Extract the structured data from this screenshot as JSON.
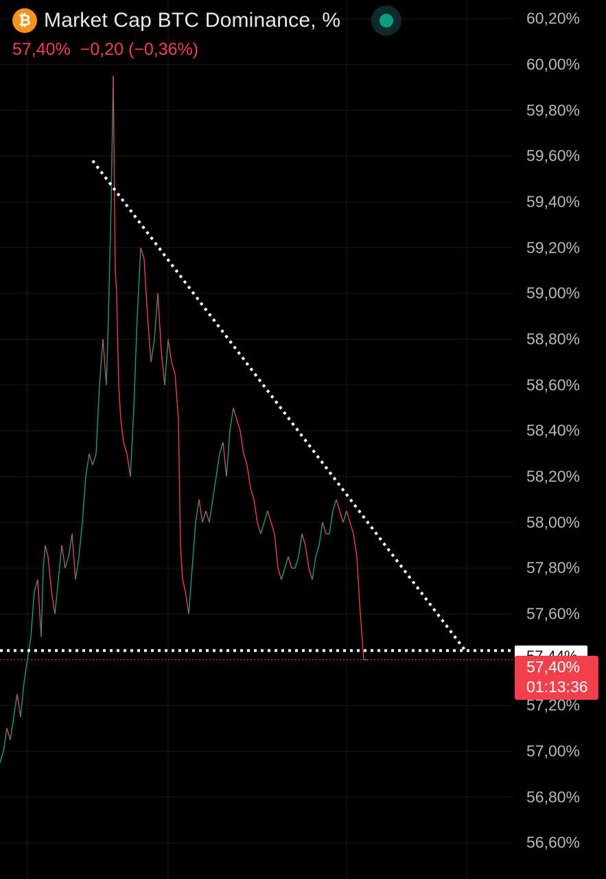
{
  "header": {
    "coin_icon": "bitcoin-icon",
    "coin_glyph": "₿",
    "title": "Market Cap BTC Dominance, %",
    "price": "57,40%",
    "change": "−0,20 (−0,36%)",
    "live_indicator": "status-dot-icon"
  },
  "price_tags": {
    "line_value": "57,44%",
    "last_price": "57,40%",
    "countdown": "01:13:36"
  },
  "colors": {
    "background": "#000000",
    "up": "#1a9e80",
    "down": "#f2404c",
    "grid": "#1a1a1a",
    "axis_text": "#b8b8b8",
    "trendline": "#ffffff",
    "brand": "#f7931a"
  },
  "chart_data": {
    "type": "line",
    "title": "Market Cap BTC Dominance, %",
    "y_ticks": [
      "60,20%",
      "60,00%",
      "59,80%",
      "59,60%",
      "59,40%",
      "59,20%",
      "59,00%",
      "58,80%",
      "58,60%",
      "58,40%",
      "58,20%",
      "58,00%",
      "57,80%",
      "57,60%",
      "57,20%",
      "57,00%",
      "56,80%",
      "56,60%"
    ],
    "ylim": [
      56.55,
      60.24
    ],
    "x": [
      0,
      5,
      10,
      15,
      20,
      25,
      30,
      35,
      40,
      45,
      50,
      55,
      60,
      63,
      66,
      70,
      75,
      80,
      85,
      90,
      95,
      100,
      105,
      110,
      115,
      120,
      125,
      130,
      135,
      140,
      145,
      150,
      155,
      158,
      162,
      165,
      168,
      170,
      173,
      176,
      180,
      185,
      190,
      195,
      200,
      205,
      210,
      215,
      220,
      225,
      230,
      235,
      240,
      245,
      250,
      255,
      260,
      263,
      266,
      270,
      275,
      280,
      285,
      290,
      295,
      300,
      305,
      310,
      315,
      320,
      325,
      330,
      335,
      340,
      345,
      350,
      355,
      360,
      365,
      370,
      375,
      380,
      385,
      390,
      395,
      400,
      405,
      410,
      415,
      420,
      425,
      430,
      435,
      440,
      445,
      450,
      455,
      460,
      465,
      470,
      475,
      480,
      485,
      490,
      495,
      500,
      505,
      510,
      515,
      520,
      525,
      530,
      533,
      536
    ],
    "values": [
      56.95,
      57.0,
      57.1,
      57.05,
      57.15,
      57.25,
      57.15,
      57.3,
      57.4,
      57.5,
      57.7,
      57.75,
      57.5,
      57.8,
      57.9,
      57.85,
      57.7,
      57.6,
      57.75,
      57.9,
      57.8,
      57.85,
      57.95,
      57.75,
      57.85,
      58.0,
      58.2,
      58.3,
      58.25,
      58.3,
      58.6,
      58.8,
      58.6,
      58.9,
      59.4,
      59.95,
      59.1,
      59.0,
      58.6,
      58.45,
      58.35,
      58.3,
      58.2,
      58.5,
      58.9,
      59.2,
      59.15,
      58.9,
      58.7,
      58.8,
      59.0,
      58.75,
      58.6,
      58.8,
      58.7,
      58.65,
      58.45,
      57.9,
      57.75,
      57.7,
      57.6,
      57.8,
      58.0,
      58.1,
      58.0,
      58.05,
      58.0,
      58.1,
      58.2,
      58.3,
      58.35,
      58.2,
      58.4,
      58.5,
      58.45,
      58.4,
      58.3,
      58.25,
      58.15,
      58.1,
      58.0,
      57.95,
      58.0,
      58.05,
      58.0,
      57.95,
      57.8,
      57.75,
      57.8,
      57.85,
      57.8,
      57.8,
      57.85,
      57.95,
      57.9,
      57.8,
      57.75,
      57.85,
      57.9,
      58.0,
      57.95,
      57.95,
      58.05,
      58.1,
      58.05,
      58.0,
      58.05,
      58.0,
      57.95,
      57.85,
      57.6,
      57.4,
      57.4,
      57.4
    ],
    "trendlines": [
      {
        "style": "dotted",
        "from": [
          135,
          59.58
        ],
        "to": [
          678,
          57.44
        ]
      },
      {
        "style": "dotted",
        "from": [
          0,
          57.44
        ],
        "to": [
          748,
          57.44
        ]
      }
    ],
    "last_price_line": 57.4,
    "grid": true
  }
}
